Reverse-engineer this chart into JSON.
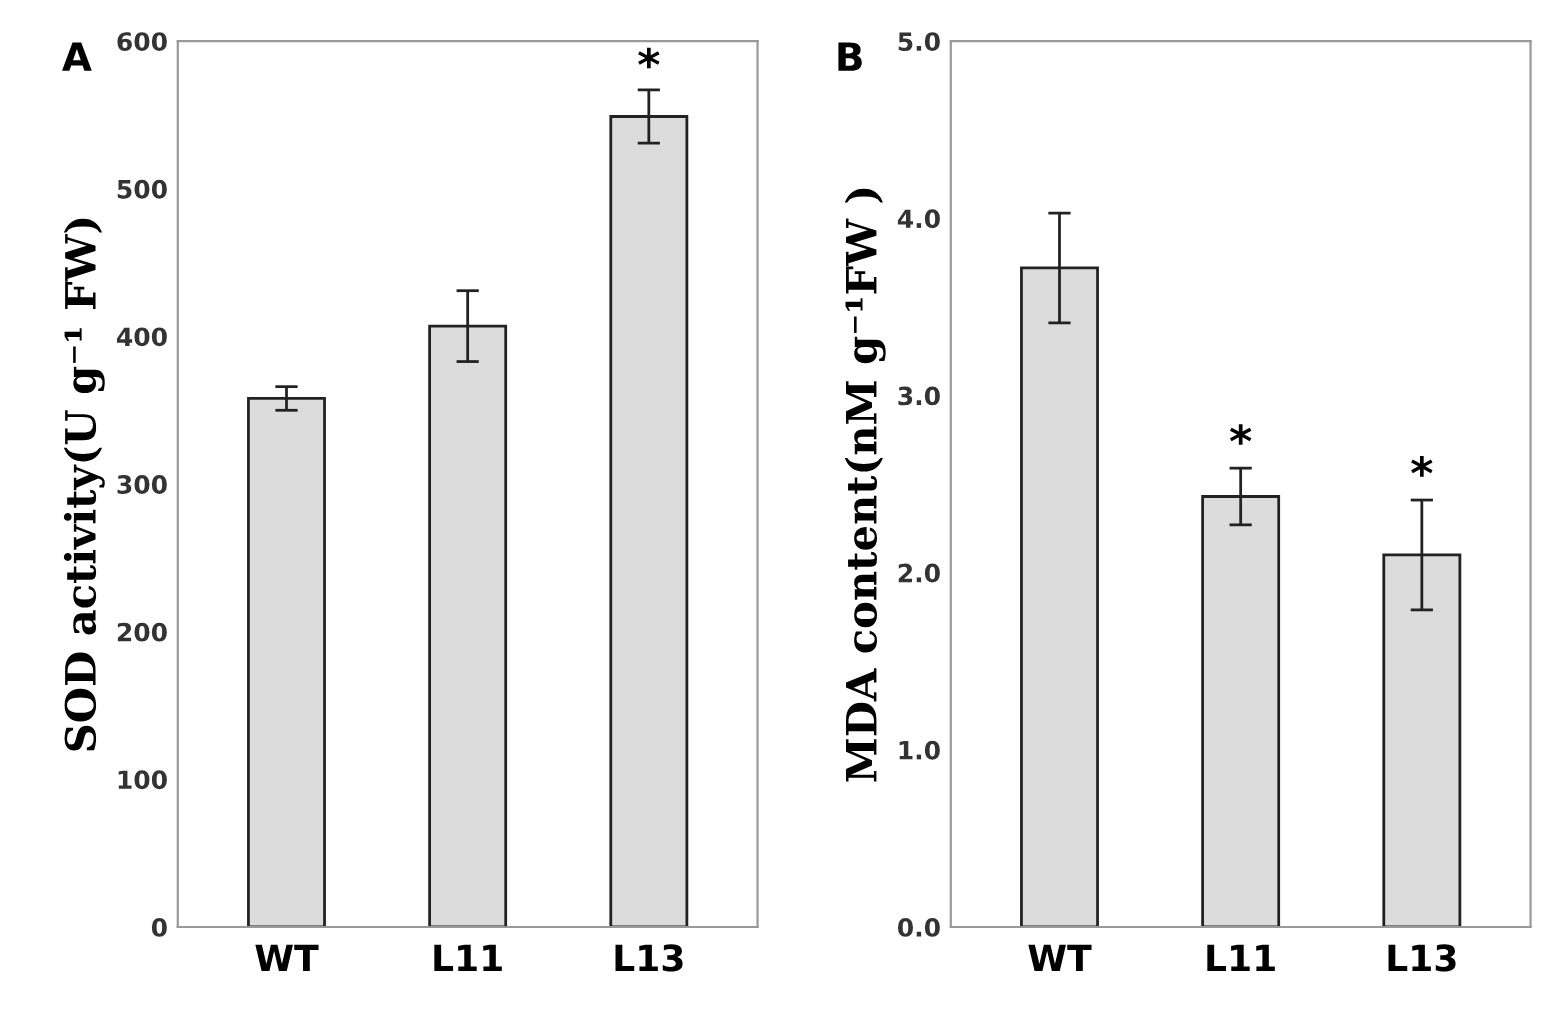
{
  "chart_data": [
    {
      "type": "bar",
      "title": "A",
      "ylabel": "SOD activity(U g⁻¹ FW)",
      "categories": [
        "WT",
        "L11",
        "L13"
      ],
      "values": [
        358,
        407,
        549
      ],
      "errors": [
        8,
        24,
        18
      ],
      "color": "#dcdcdc",
      "ylim": [
        0,
        600
      ],
      "yticks": [
        0,
        100,
        200,
        300,
        400,
        500,
        600
      ],
      "grid": false,
      "legend": false,
      "annotations": [
        {
          "text": "*",
          "x": "L13",
          "y": 567
        }
      ]
    },
    {
      "type": "bar",
      "title": "B",
      "ylabel": "MDA content(nM g⁻¹FW )",
      "categories": [
        "WT",
        "L11",
        "L13"
      ],
      "values": [
        3.72,
        2.43,
        2.1
      ],
      "errors": [
        0.31,
        0.16,
        0.31
      ],
      "color": "#dcdcdc",
      "ylim": [
        0,
        5
      ],
      "yticks": [
        {
          "value": 0,
          "label": "0.0"
        },
        {
          "value": 1,
          "label": "1.0"
        },
        {
          "value": 2,
          "label": "2.0"
        },
        {
          "value": 3,
          "label": "3.0"
        },
        {
          "value": 4,
          "label": "4.0"
        },
        {
          "value": 5,
          "label": "5.0"
        }
      ],
      "grid": false,
      "legend": false,
      "annotations": [
        {
          "text": "*",
          "x": "L11",
          "y": 2.6
        },
        {
          "text": "*",
          "x": "L13",
          "y": 2.42
        }
      ]
    }
  ]
}
